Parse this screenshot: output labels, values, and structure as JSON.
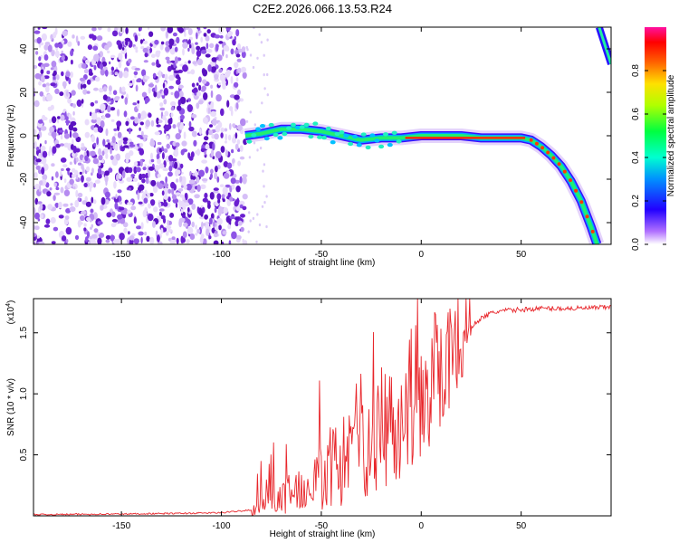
{
  "title": "C2E2.2026.066.13.53.R24",
  "colors": {
    "background": "#ffffff",
    "noise": "#6a1fd0",
    "snr_line": "#e8262b",
    "axis": "#000000"
  },
  "chart_data": [
    {
      "type": "heatmap",
      "title": "C2E2.2026.066.13.53.R24",
      "xlabel": "Height of straight line (km)",
      "ylabel": "Frequency (Hz)",
      "xlim": [
        -194,
        95
      ],
      "ylim": [
        -50,
        50
      ],
      "x_ticks": [
        -150,
        -100,
        -50,
        0,
        50
      ],
      "y_ticks": [
        -40,
        -20,
        0,
        20,
        40
      ],
      "noise_region_x": [
        -194,
        -88
      ],
      "ridge": {
        "x": [
          -88,
          -80,
          -70,
          -60,
          -50,
          -40,
          -30,
          -20,
          -10,
          0,
          10,
          20,
          30,
          40,
          50,
          55,
          60,
          65,
          70,
          75,
          80,
          85,
          88
        ],
        "y": [
          0,
          1,
          3,
          3,
          2,
          0,
          -2,
          -1,
          -1,
          0,
          0,
          0,
          -1,
          -1,
          -1,
          -2,
          -5,
          -9,
          -14,
          -21,
          -30,
          -42,
          -50
        ]
      },
      "secondary_ridge": {
        "x": [
          89,
          95
        ],
        "y": [
          50,
          33
        ]
      },
      "colorbar": {
        "label": "Normalized spectral amplitude",
        "range": [
          0.0,
          1.0
        ],
        "ticks": [
          "0.0",
          "0.2",
          "0.4",
          "0.6",
          "0.8"
        ],
        "colormap": "rainbow"
      }
    },
    {
      "type": "line",
      "xlabel": "Height of straight line (km)",
      "ylabel": "SNR (10 * v/v)",
      "scale_label": "(x10",
      "scale_exponent": "4",
      "xlim": [
        -194,
        95
      ],
      "ylim": [
        0,
        1.78
      ],
      "x_ticks": [
        -150,
        -100,
        -50,
        0,
        50
      ],
      "y_ticks": [
        "0.5",
        "1.0",
        "1.5"
      ],
      "series": [
        {
          "name": "SNR",
          "x": [
            -194,
            -150,
            -120,
            -100,
            -85,
            -80,
            -75,
            -70,
            -65,
            -60,
            -55,
            -50,
            -45,
            -40,
            -35,
            -30,
            -25,
            -20,
            -15,
            -10,
            -5,
            0,
            5,
            10,
            15,
            20,
            25,
            30,
            35,
            40,
            50,
            60,
            70,
            80,
            95
          ],
          "values": [
            0.01,
            0.015,
            0.02,
            0.025,
            0.05,
            0.1,
            0.12,
            0.15,
            0.2,
            0.25,
            0.3,
            0.35,
            0.4,
            0.45,
            0.5,
            0.55,
            0.6,
            0.7,
            0.8,
            0.9,
            0.95,
            1.05,
            1.15,
            1.25,
            1.35,
            1.45,
            1.55,
            1.62,
            1.66,
            1.68,
            1.69,
            1.7,
            1.7,
            1.7,
            1.71
          ]
        }
      ]
    }
  ]
}
